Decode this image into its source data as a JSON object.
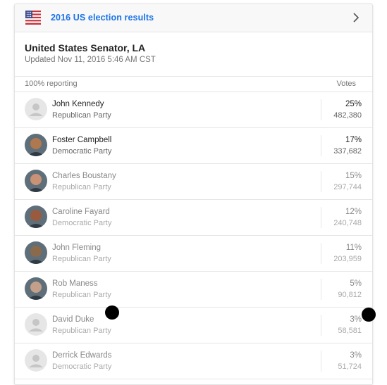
{
  "banner": {
    "title": "2016 US election results",
    "flag_icon": "us-flag-icon",
    "chevron_icon": "chevron-right-icon",
    "accent": "#1a73e8"
  },
  "race": {
    "title": "United States Senator, LA",
    "updated": "Updated Nov 11, 2016 5:46 AM CST"
  },
  "table": {
    "reporting": "100% reporting",
    "votes_header": "Votes",
    "candidates": [
      {
        "name": "John Kennedy",
        "party": "Republican Party",
        "pct": "25%",
        "votes": "482,380",
        "photo": "placeholder"
      },
      {
        "name": "Foster Campbell",
        "party": "Democratic Party",
        "pct": "17%",
        "votes": "337,682",
        "photo": "portrait"
      },
      {
        "name": "Charles Boustany",
        "party": "Republican Party",
        "pct": "15%",
        "votes": "297,744",
        "photo": "portrait"
      },
      {
        "name": "Caroline Fayard",
        "party": "Democratic Party",
        "pct": "12%",
        "votes": "240,748",
        "photo": "portrait"
      },
      {
        "name": "John Fleming",
        "party": "Republican Party",
        "pct": "11%",
        "votes": "203,959",
        "photo": "portrait"
      },
      {
        "name": "Rob Maness",
        "party": "Republican Party",
        "pct": "5%",
        "votes": "90,812",
        "photo": "portrait"
      },
      {
        "name": "David Duke",
        "party": "Republican Party",
        "pct": "3%",
        "votes": "58,581",
        "photo": "placeholder"
      },
      {
        "name": "Derrick Edwards",
        "party": "Democratic Party",
        "pct": "3%",
        "votes": "51,724",
        "photo": "placeholder"
      }
    ]
  }
}
